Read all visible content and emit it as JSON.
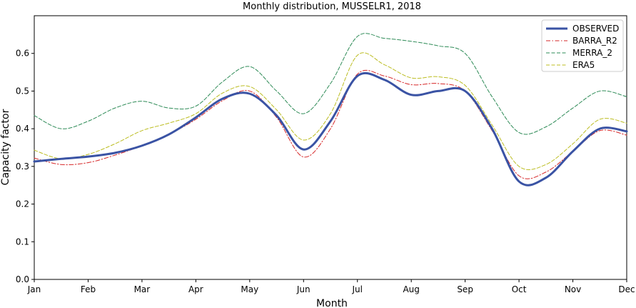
{
  "chart_data": {
    "type": "line",
    "title": "Monthly distribution, MUSSELR1, 2018",
    "xlabel": "Month",
    "ylabel": "Capacity factor",
    "ylim": [
      0.0,
      0.7
    ],
    "yticks": [
      "0.0",
      "0.1",
      "0.2",
      "0.3",
      "0.4",
      "0.5",
      "0.6"
    ],
    "ytick_values": [
      0.0,
      0.1,
      0.2,
      0.3,
      0.4,
      0.5,
      0.6
    ],
    "categories": [
      "Jan",
      "Feb",
      "Mar",
      "Apr",
      "May",
      "Jun",
      "Jul",
      "Aug",
      "Sep",
      "Oct",
      "Nov",
      "Dec"
    ],
    "grid": false,
    "legend_position": "top-right",
    "series": [
      {
        "name": "OBSERVED",
        "color": "#3a53a4",
        "style": "solid",
        "width": 3,
        "points": [
          [
            0,
            0.313
          ],
          [
            0.5,
            0.32
          ],
          [
            1,
            0.326
          ],
          [
            1.5,
            0.336
          ],
          [
            2,
            0.355
          ],
          [
            2.5,
            0.385
          ],
          [
            3,
            0.43
          ],
          [
            3.5,
            0.48
          ],
          [
            4,
            0.493
          ],
          [
            4.5,
            0.435
          ],
          [
            5,
            0.345
          ],
          [
            5.5,
            0.42
          ],
          [
            6,
            0.54
          ],
          [
            6.5,
            0.53
          ],
          [
            7,
            0.49
          ],
          [
            7.5,
            0.5
          ],
          [
            8,
            0.5
          ],
          [
            8.5,
            0.4
          ],
          [
            9,
            0.26
          ],
          [
            9.5,
            0.27
          ],
          [
            10,
            0.34
          ],
          [
            10.5,
            0.4
          ],
          [
            11,
            0.393
          ]
        ]
      },
      {
        "name": "BARRA_R2",
        "color": "#d62728",
        "style": "dashdot",
        "width": 1,
        "points": [
          [
            0,
            0.322
          ],
          [
            0.5,
            0.305
          ],
          [
            1,
            0.31
          ],
          [
            1.5,
            0.33
          ],
          [
            2,
            0.355
          ],
          [
            2.5,
            0.385
          ],
          [
            3,
            0.425
          ],
          [
            3.5,
            0.475
          ],
          [
            4,
            0.5
          ],
          [
            4.5,
            0.43
          ],
          [
            5,
            0.325
          ],
          [
            5.5,
            0.4
          ],
          [
            6,
            0.545
          ],
          [
            6.5,
            0.54
          ],
          [
            7,
            0.517
          ],
          [
            7.5,
            0.52
          ],
          [
            8,
            0.5
          ],
          [
            8.5,
            0.395
          ],
          [
            9,
            0.275
          ],
          [
            9.5,
            0.285
          ],
          [
            10,
            0.34
          ],
          [
            10.5,
            0.395
          ],
          [
            11,
            0.383
          ]
        ]
      },
      {
        "name": "MERRA_2",
        "color": "#2e8b57",
        "style": "dashed",
        "width": 1,
        "points": [
          [
            0,
            0.435
          ],
          [
            0.5,
            0.4
          ],
          [
            1,
            0.42
          ],
          [
            1.5,
            0.455
          ],
          [
            2,
            0.473
          ],
          [
            2.5,
            0.455
          ],
          [
            3,
            0.46
          ],
          [
            3.5,
            0.525
          ],
          [
            4,
            0.565
          ],
          [
            4.5,
            0.5
          ],
          [
            5,
            0.44
          ],
          [
            5.5,
            0.52
          ],
          [
            6,
            0.645
          ],
          [
            6.5,
            0.64
          ],
          [
            7,
            0.632
          ],
          [
            7.5,
            0.62
          ],
          [
            8,
            0.6
          ],
          [
            8.5,
            0.485
          ],
          [
            9,
            0.39
          ],
          [
            9.5,
            0.405
          ],
          [
            10,
            0.455
          ],
          [
            10.5,
            0.5
          ],
          [
            11,
            0.485
          ]
        ]
      },
      {
        "name": "ERA5",
        "color": "#bcbd22",
        "style": "dashed",
        "width": 1,
        "points": [
          [
            0,
            0.343
          ],
          [
            0.5,
            0.32
          ],
          [
            1,
            0.332
          ],
          [
            1.5,
            0.36
          ],
          [
            2,
            0.395
          ],
          [
            2.5,
            0.415
          ],
          [
            3,
            0.44
          ],
          [
            3.5,
            0.495
          ],
          [
            4,
            0.512
          ],
          [
            4.5,
            0.45
          ],
          [
            5,
            0.37
          ],
          [
            5.5,
            0.44
          ],
          [
            6,
            0.595
          ],
          [
            6.5,
            0.57
          ],
          [
            7,
            0.535
          ],
          [
            7.5,
            0.538
          ],
          [
            8,
            0.515
          ],
          [
            8.5,
            0.41
          ],
          [
            9,
            0.3
          ],
          [
            9.5,
            0.305
          ],
          [
            10,
            0.36
          ],
          [
            10.5,
            0.425
          ],
          [
            11,
            0.415
          ]
        ]
      }
    ]
  }
}
